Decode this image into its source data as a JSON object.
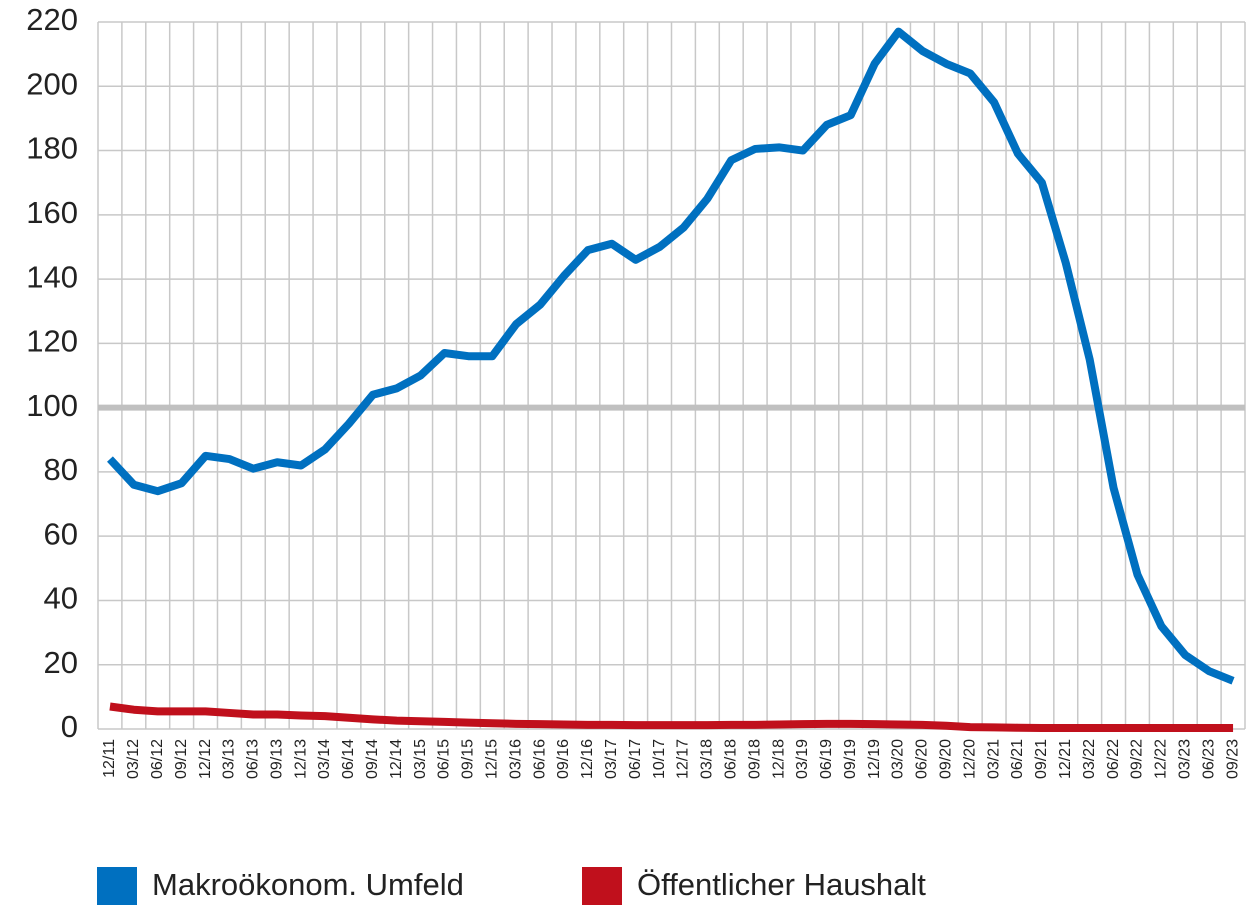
{
  "chart_data": {
    "type": "line",
    "categories": [
      "12/11",
      "03/12",
      "06/12",
      "09/12",
      "12/12",
      "03/13",
      "06/13",
      "09/13",
      "12/13",
      "03/14",
      "06/14",
      "09/14",
      "12/14",
      "03/15",
      "06/15",
      "09/15",
      "12/15",
      "03/16",
      "06/16",
      "09/16",
      "12/16",
      "03/17",
      "06/17",
      "10/17",
      "12/17",
      "03/18",
      "06/18",
      "09/18",
      "12/18",
      "03/19",
      "06/19",
      "09/19",
      "12/19",
      "03/20",
      "06/20",
      "09/20",
      "12/20",
      "03/21",
      "06/21",
      "09/21",
      "12/21",
      "03/22",
      "06/22",
      "09/22",
      "12/22",
      "03/23",
      "06/23",
      "09/23"
    ],
    "series": [
      {
        "name": "Makroökonom. Umfeld",
        "color": "#0070c0",
        "values": [
          84,
          76,
          74,
          76.5,
          85,
          84,
          81,
          83,
          82,
          87,
          95,
          104,
          106,
          110,
          117,
          116,
          116,
          126,
          132,
          141,
          149,
          151,
          146,
          150,
          156,
          165,
          177,
          180.5,
          181,
          180,
          188,
          191,
          207,
          217,
          211,
          207,
          204,
          195,
          179,
          170,
          145,
          115,
          75,
          48,
          32,
          23,
          18,
          15
        ]
      },
      {
        "name": "Öffentlicher Haushalt",
        "color": "#c0101c",
        "values": [
          7,
          6,
          5.5,
          5.5,
          5.5,
          5,
          4.5,
          4.5,
          4.2,
          4,
          3.5,
          3,
          2.6,
          2.4,
          2.2,
          2,
          1.8,
          1.6,
          1.5,
          1.4,
          1.3,
          1.3,
          1.2,
          1.2,
          1.2,
          1.2,
          1.3,
          1.3,
          1.4,
          1.5,
          1.6,
          1.6,
          1.5,
          1.4,
          1.3,
          1,
          0.6,
          0.5,
          0.4,
          0.3,
          0.3,
          0.3,
          0.3,
          0.3,
          0.3,
          0.3,
          0.3,
          0.3
        ]
      }
    ],
    "ylim": [
      0,
      220
    ],
    "yticks": [
      0,
      20,
      40,
      60,
      80,
      100,
      120,
      140,
      160,
      180,
      200,
      220
    ],
    "reference_line": 100,
    "grid": true,
    "legend": "bottom"
  }
}
